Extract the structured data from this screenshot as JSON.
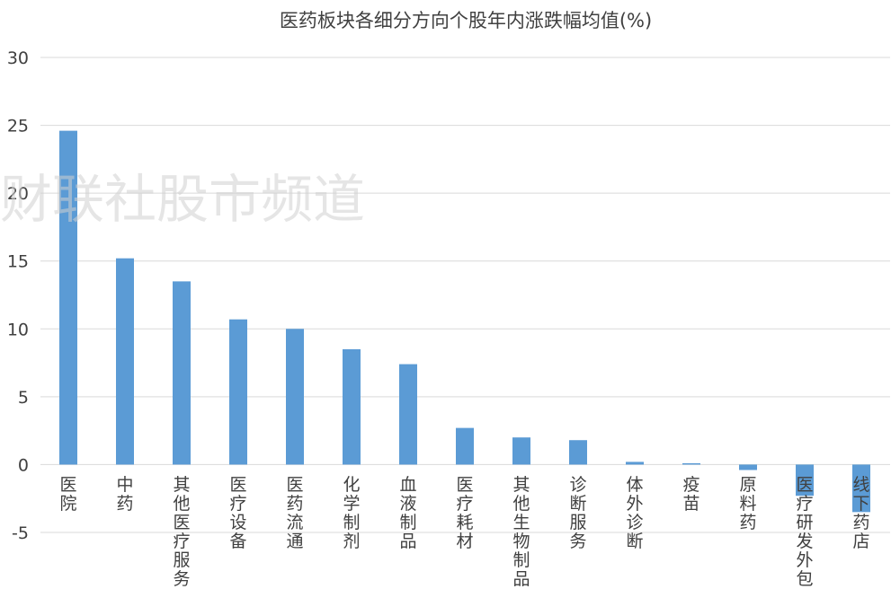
{
  "chart_data": {
    "type": "bar",
    "title": "医药板块各细分方向个股年内涨跌幅均值(%)",
    "xlabel": "",
    "ylabel": "",
    "ylim": [
      -5,
      30
    ],
    "yticks": [
      -5,
      0,
      5,
      10,
      15,
      20,
      25,
      30
    ],
    "grid": true,
    "legend": "none",
    "bar_color": "#5b9bd5",
    "categories": [
      "医院",
      "中药",
      "其他医疗服务",
      "医疗设备",
      "医药流通",
      "化学制剂",
      "血液制品",
      "医疗耗材",
      "其他生物制品",
      "诊断服务",
      "体外诊断",
      "疫苗",
      "原料药",
      "医疗研发外包",
      "线下药店"
    ],
    "values": [
      24.6,
      15.2,
      13.5,
      10.7,
      10.0,
      8.5,
      7.4,
      2.7,
      2.0,
      1.8,
      0.2,
      0.1,
      -0.4,
      -2.3,
      -3.5
    ]
  },
  "watermark": "财联社股市频道"
}
